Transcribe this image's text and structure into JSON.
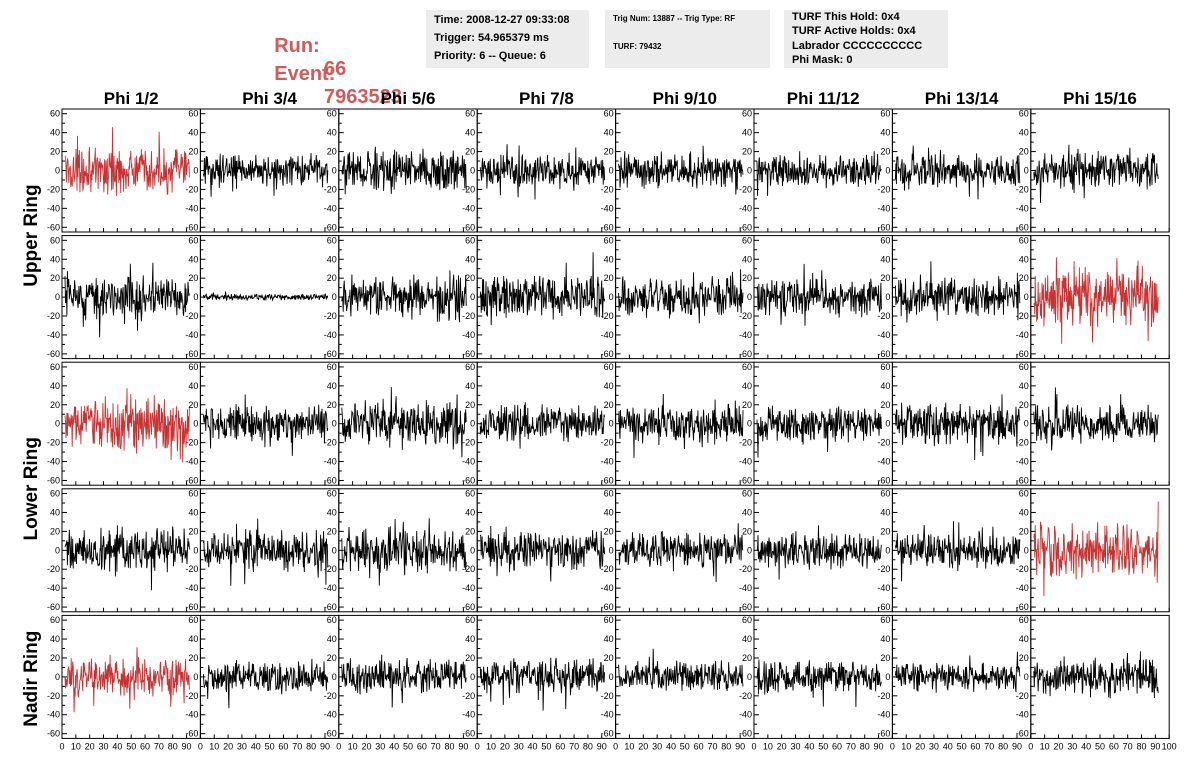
{
  "header": {
    "run_label": "Run:",
    "run_value": "66",
    "event_label": "Event:",
    "event_value": "7963523",
    "time": "Time: 2008-12-27 09:33:08",
    "trigger": "Trigger: 54.965379 ms",
    "priority_queue": "Priority: 6 -- Queue: 6",
    "trig_num_type": "Trig Num: 13887 -- Trig Type: RF",
    "turf_id": "TURF: 79432",
    "turf_this_hold": "TURF This Hold: 0x4",
    "turf_active_holds": "TURF Active Holds: 0x4",
    "labrador": "Labrador CCCCCCCCCC",
    "phi_mask": "Phi Mask: 0"
  },
  "colors": {
    "header_text": "#d45a5a",
    "triggered_trace": "#c83232",
    "normal_trace": "#000000",
    "info_box_bg": "#ececec"
  },
  "chart_data": {
    "type": "line",
    "columns": [
      "Phi 1/2",
      "Phi 3/4",
      "Phi 5/6",
      "Phi 7/8",
      "Phi 9/10",
      "Phi 11/12",
      "Phi 13/14",
      "Phi 15/16"
    ],
    "row_labels": [
      "Upper Ring",
      "Lower Ring",
      "Nadir Ring"
    ],
    "x_tick_labels": [
      "0",
      "10",
      "20",
      "30",
      "40",
      "50",
      "60",
      "70",
      "80",
      "90",
      "100"
    ],
    "y_tick_labels": [
      "-60",
      "-40",
      "-20",
      "0",
      "20",
      "40",
      "60"
    ],
    "xlim": [
      0,
      100
    ],
    "ylim": [
      -65,
      65
    ],
    "panels": [
      [
        {
          "amp": 14,
          "red": true
        },
        {
          "amp": 10,
          "red": false
        },
        {
          "amp": 14,
          "red": false
        },
        {
          "amp": 11,
          "red": false
        },
        {
          "amp": 11,
          "red": false
        },
        {
          "amp": 10,
          "red": false
        },
        {
          "amp": 10,
          "red": false
        },
        {
          "amp": 11,
          "red": false
        }
      ],
      [
        {
          "amp": 14,
          "red": false
        },
        {
          "amp": 2,
          "red": false
        },
        {
          "amp": 14,
          "red": false
        },
        {
          "amp": 14,
          "red": false
        },
        {
          "amp": 12,
          "red": false
        },
        {
          "amp": 12,
          "red": false
        },
        {
          "amp": 12,
          "red": false
        },
        {
          "amp": 18,
          "red": true
        }
      ],
      [
        {
          "amp": 16,
          "red": true
        },
        {
          "amp": 11,
          "red": false
        },
        {
          "amp": 14,
          "red": false
        },
        {
          "amp": 11,
          "red": false
        },
        {
          "amp": 12,
          "red": false
        },
        {
          "amp": 11,
          "red": false
        },
        {
          "amp": 13,
          "red": false
        },
        {
          "amp": 12,
          "red": false
        }
      ],
      [
        {
          "amp": 13,
          "red": false
        },
        {
          "amp": 13,
          "red": false
        },
        {
          "amp": 14,
          "red": false
        },
        {
          "amp": 12,
          "red": false
        },
        {
          "amp": 11,
          "red": false
        },
        {
          "amp": 11,
          "red": false
        },
        {
          "amp": 11,
          "red": false
        },
        {
          "amp": 17,
          "red": true
        }
      ],
      [
        {
          "amp": 12,
          "red": true
        },
        {
          "amp": 10,
          "red": false
        },
        {
          "amp": 11,
          "red": false
        },
        {
          "amp": 11,
          "red": false
        },
        {
          "amp": 10,
          "red": false
        },
        {
          "amp": 11,
          "red": false
        },
        {
          "amp": 9,
          "red": false
        },
        {
          "amp": 12,
          "red": false
        }
      ]
    ],
    "grid": false,
    "legend": "none"
  }
}
